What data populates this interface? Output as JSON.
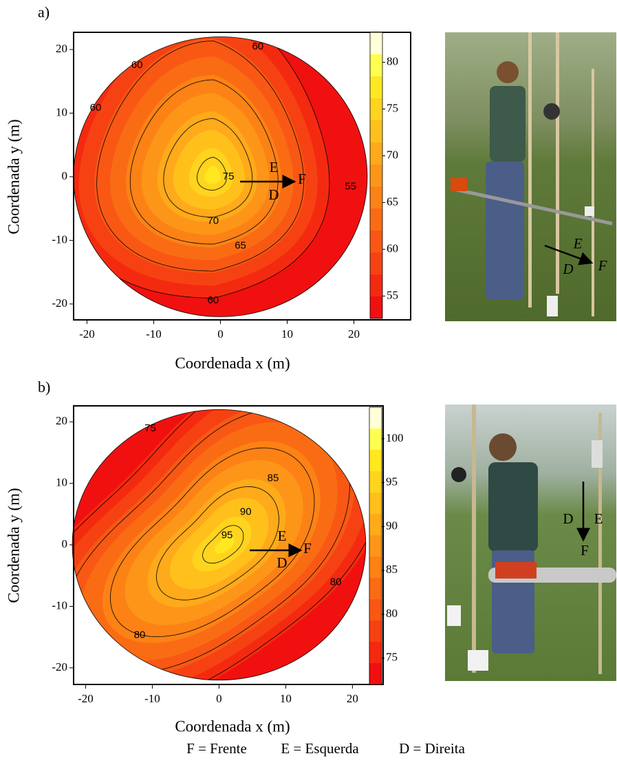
{
  "chart_data": [
    {
      "type": "contour",
      "panel_label": "a)",
      "xlabel": "Coordenada x (m)",
      "ylabel": "Coordenada y (m)",
      "xlim": [
        -22,
        28.5
      ],
      "ylim": [
        -22.5,
        22.7
      ],
      "xticks": [
        -20,
        -10,
        0,
        10,
        20
      ],
      "yticks": [
        -20,
        -10,
        0,
        10,
        20
      ],
      "clim": [
        52.6,
        83.2
      ],
      "cticks": [
        55,
        60,
        65,
        70,
        75,
        80
      ],
      "band_colors": [
        "#f01010",
        "#f42a10",
        "#f64212",
        "#f85814",
        "#fa6c14",
        "#fc8216",
        "#fd9618",
        "#feaa1a",
        "#ffc01c",
        "#ffd41e",
        "#ffe820",
        "#ffff50",
        "#ffffd8"
      ],
      "contour_levels": [
        55,
        60,
        65,
        70,
        75
      ],
      "contour_labels": [
        60,
        60,
        60,
        75,
        55,
        70,
        65,
        60
      ],
      "annotations": [
        "E",
        "F",
        "D"
      ],
      "photo_annotations": [
        "E",
        "D",
        "F"
      ]
    },
    {
      "type": "contour",
      "panel_label": "b)",
      "xlabel": "Coordenada x (m)",
      "ylabel": "Coordenada y (m)",
      "xlim": [
        -21.8,
        24.6
      ],
      "ylim": [
        -22.7,
        22.6
      ],
      "xticks": [
        -20,
        -10,
        0,
        10,
        20
      ],
      "yticks": [
        -20,
        -10,
        0,
        10,
        20
      ],
      "clim": [
        72,
        103.6
      ],
      "cticks": [
        75,
        80,
        85,
        90,
        95,
        100
      ],
      "band_colors": [
        "#f01010",
        "#f42a10",
        "#f64212",
        "#f85814",
        "#fa6c14",
        "#fc8216",
        "#fd9618",
        "#feaa1a",
        "#ffc01c",
        "#ffd41e",
        "#ffe820",
        "#ffff50",
        "#ffffd8"
      ],
      "contour_levels": [
        75,
        80,
        85,
        90,
        95
      ],
      "contour_labels": [
        75,
        85,
        90,
        95,
        80,
        80
      ],
      "annotations": [
        "E",
        "F",
        "D"
      ],
      "photo_annotations": [
        "D",
        "E",
        "F"
      ]
    }
  ],
  "footer": [
    "F = Frente",
    "E = Esquerda",
    "D = Direita"
  ]
}
